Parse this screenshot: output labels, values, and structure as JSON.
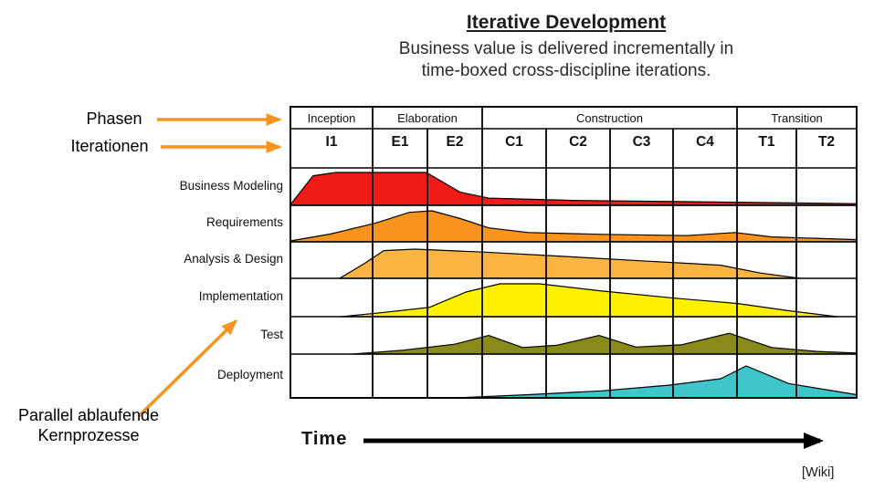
{
  "header": {
    "title": "Iterative Development",
    "subtitle_line1": "Business value is delivered incrementally in",
    "subtitle_line2": "time-boxed cross-discipline iterations."
  },
  "annotations": {
    "phasen_label": "Phasen",
    "iterationen_label": "Iterationen",
    "kernprozesse_line1": "Parallel ablaufende",
    "kernprozesse_line2": "Kernprozesse",
    "arrow_color": "#F7941D"
  },
  "footer": {
    "time_label": "Time",
    "credit": "[Wiki]"
  },
  "chart_data": {
    "type": "area",
    "title": "Iterative Development",
    "xlabel": "Time",
    "phases": [
      {
        "label": "Inception",
        "iterations": [
          "I1"
        ]
      },
      {
        "label": "Elaboration",
        "iterations": [
          "E1",
          "E2"
        ]
      },
      {
        "label": "Construction",
        "iterations": [
          "C1",
          "C2",
          "C3",
          "C4"
        ]
      },
      {
        "label": "Transition",
        "iterations": [
          "T1",
          "T2"
        ]
      }
    ],
    "disciplines": [
      {
        "label": "Business Modeling",
        "color": "#EE1C14",
        "effort_profile": [
          [
            0,
            0.02
          ],
          [
            0.04,
            0.9
          ],
          [
            0.08,
            1.0
          ],
          [
            0.24,
            1.0
          ],
          [
            0.3,
            0.4
          ],
          [
            0.35,
            0.22
          ],
          [
            0.5,
            0.15
          ],
          [
            0.7,
            0.11
          ],
          [
            1.0,
            0.05
          ]
        ]
      },
      {
        "label": "Requirements",
        "color": "#F8941E",
        "effort_profile": [
          [
            0,
            0.03
          ],
          [
            0.07,
            0.25
          ],
          [
            0.15,
            0.6
          ],
          [
            0.21,
            0.95
          ],
          [
            0.25,
            1.0
          ],
          [
            0.3,
            0.75
          ],
          [
            0.35,
            0.45
          ],
          [
            0.42,
            0.3
          ],
          [
            0.55,
            0.24
          ],
          [
            0.7,
            0.2
          ],
          [
            0.785,
            0.3
          ],
          [
            0.85,
            0.16
          ],
          [
            1.0,
            0.07
          ]
        ]
      },
      {
        "label": "Analysis & Design",
        "color": "#FBB442",
        "effort_profile": [
          [
            0.087,
            0
          ],
          [
            0.13,
            0.5
          ],
          [
            0.165,
            0.95
          ],
          [
            0.22,
            1.0
          ],
          [
            0.34,
            0.9
          ],
          [
            0.455,
            0.78
          ],
          [
            0.62,
            0.6
          ],
          [
            0.76,
            0.45
          ],
          [
            0.83,
            0.18
          ],
          [
            0.9,
            0
          ]
        ]
      },
      {
        "label": "Implementation",
        "color": "#FFF100",
        "effort_profile": [
          [
            0.09,
            0
          ],
          [
            0.16,
            0.12
          ],
          [
            0.245,
            0.28
          ],
          [
            0.31,
            0.75
          ],
          [
            0.37,
            1.0
          ],
          [
            0.44,
            1.0
          ],
          [
            0.55,
            0.78
          ],
          [
            0.68,
            0.56
          ],
          [
            0.79,
            0.4
          ],
          [
            0.88,
            0.18
          ],
          [
            0.965,
            0
          ]
        ]
      },
      {
        "label": "Test",
        "color": "#8A8A18",
        "effort_profile": [
          [
            0.11,
            0
          ],
          [
            0.2,
            0.18
          ],
          [
            0.29,
            0.45
          ],
          [
            0.35,
            0.85
          ],
          [
            0.41,
            0.3
          ],
          [
            0.47,
            0.4
          ],
          [
            0.545,
            0.85
          ],
          [
            0.61,
            0.32
          ],
          [
            0.69,
            0.42
          ],
          [
            0.775,
            0.95
          ],
          [
            0.85,
            0.3
          ],
          [
            0.93,
            0.12
          ],
          [
            1.0,
            0.05
          ]
        ]
      },
      {
        "label": "Deployment",
        "color": "#3EC6CB",
        "effort_profile": [
          [
            0.29,
            0
          ],
          [
            0.42,
            0.1
          ],
          [
            0.55,
            0.22
          ],
          [
            0.67,
            0.4
          ],
          [
            0.76,
            0.6
          ],
          [
            0.805,
            1.0
          ],
          [
            0.88,
            0.45
          ],
          [
            1.0,
            0.1
          ]
        ]
      }
    ]
  }
}
